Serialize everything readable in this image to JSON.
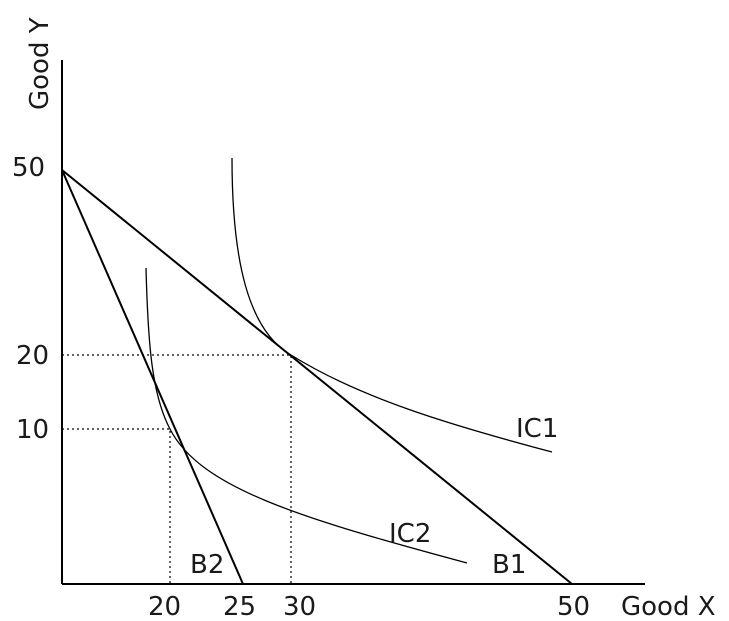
{
  "chart_data": {
    "type": "line",
    "xlabel": "Good X",
    "ylabel": "Good Y",
    "x_ticks": [
      "20",
      "25",
      "30",
      "50"
    ],
    "y_ticks": [
      "50",
      "20",
      "10"
    ],
    "budget_lines": [
      {
        "name": "B1",
        "x_intercept": 50,
        "y_intercept": 50
      },
      {
        "name": "B2",
        "x_intercept": 25,
        "y_intercept": 50
      }
    ],
    "indifference_curves": [
      {
        "name": "IC1",
        "tangent_point": [
          30,
          20
        ]
      },
      {
        "name": "IC2",
        "tangent_point": [
          20,
          10
        ]
      }
    ],
    "guide_lines": "dotted",
    "grid": false
  }
}
